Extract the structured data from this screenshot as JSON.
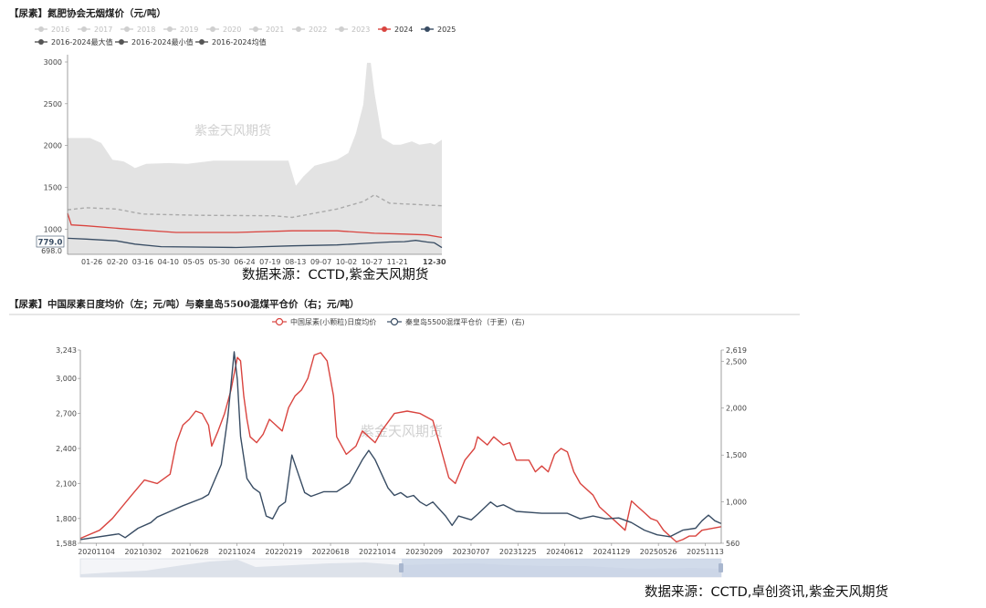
{
  "chart_data": [
    {
      "type": "area",
      "title": "【尿素】氮肥协会无烟煤价（元/吨）",
      "legend": {
        "placement": "top",
        "years": [
          "2016",
          "2017",
          "2018",
          "2019",
          "2020",
          "2021",
          "2022",
          "2023",
          "2024",
          "2025"
        ],
        "active_years": [
          "2024",
          "2025"
        ],
        "bands": [
          "2016-2024最大值",
          "2016-2024最小值",
          "2016-2024均值"
        ]
      },
      "x_ticks": [
        "01-26",
        "02-20",
        "03-16",
        "04-10",
        "05-05",
        "05-30",
        "06-24",
        "07-19",
        "08-13",
        "09-07",
        "10-02",
        "10-27",
        "11-21",
        "12-30"
      ],
      "y_ticks": [
        3000,
        2500,
        2000,
        1500,
        1000
      ],
      "ylim": [
        698,
        3000
      ],
      "y_min_label": "698.0",
      "last_value_label": "779.0",
      "watermark": "紫金天风期货",
      "grid": false,
      "series": [
        {
          "name": "2016-2024最大值",
          "color": "#e3e3e3",
          "points": [
            [
              0,
              2090
            ],
            [
              6,
              2090
            ],
            [
              9,
              2030
            ],
            [
              12,
              1830
            ],
            [
              15,
              1810
            ],
            [
              17,
              1760
            ],
            [
              18,
              1730
            ],
            [
              21,
              1780
            ],
            [
              27,
              1790
            ],
            [
              32,
              1780
            ],
            [
              39,
              1820
            ],
            [
              46,
              1820
            ],
            [
              59,
              1820
            ],
            [
              61,
              1520
            ],
            [
              63,
              1630
            ],
            [
              66,
              1760
            ],
            [
              72,
              1830
            ],
            [
              75,
              1910
            ],
            [
              77,
              2140
            ],
            [
              79,
              2490
            ],
            [
              80,
              2990
            ],
            [
              81,
              2990
            ],
            [
              82,
              2630
            ],
            [
              84,
              2090
            ],
            [
              87,
              2010
            ],
            [
              89,
              2010
            ],
            [
              92,
              2050
            ],
            [
              94,
              2010
            ],
            [
              97,
              2030
            ],
            [
              98,
              2010
            ],
            [
              100,
              2070
            ]
          ]
        },
        {
          "name": "2016-2024最小值",
          "color": "#e3e3e3",
          "points": [
            [
              0,
              698
            ],
            [
              100,
              698
            ]
          ]
        },
        {
          "name": "2016-2024均值",
          "color": "#aaaaaa",
          "points": [
            [
              0,
              1230
            ],
            [
              5,
              1255
            ],
            [
              13,
              1240
            ],
            [
              20,
              1180
            ],
            [
              35,
              1165
            ],
            [
              55,
              1160
            ],
            [
              60,
              1140
            ],
            [
              72,
              1240
            ],
            [
              79,
              1330
            ],
            [
              82,
              1410
            ],
            [
              86,
              1310
            ],
            [
              100,
              1280
            ]
          ]
        },
        {
          "name": "2024",
          "color": "#d9443f",
          "points": [
            [
              0,
              1190
            ],
            [
              1,
              1050
            ],
            [
              5,
              1040
            ],
            [
              16,
              1000
            ],
            [
              29,
              960
            ],
            [
              45,
              960
            ],
            [
              60,
              980
            ],
            [
              72,
              980
            ],
            [
              82,
              950
            ],
            [
              90,
              940
            ],
            [
              96,
              930
            ],
            [
              100,
              900
            ]
          ]
        },
        {
          "name": "2025",
          "color": "#384c63",
          "points": [
            [
              0,
              890
            ],
            [
              5,
              880
            ],
            [
              13,
              860
            ],
            [
              18,
              820
            ],
            [
              25,
              790
            ],
            [
              45,
              780
            ],
            [
              60,
              800
            ],
            [
              72,
              810
            ],
            [
              80,
              830
            ],
            [
              86,
              845
            ],
            [
              90,
              850
            ],
            [
              93,
              865
            ],
            [
              96,
              845
            ],
            [
              98,
              835
            ],
            [
              100,
              779
            ]
          ]
        }
      ]
    },
    {
      "type": "line",
      "title": "【尿素】中国尿素日度均价（左；元/吨）与秦皇岛5500混煤平仓价（右；元/吨）",
      "legend": {
        "placement": "top",
        "entries": [
          "中国尿素(小颗粒)日度均价",
          "秦皇岛5500混煤平仓价（于更）(右)"
        ]
      },
      "x_ticks": [
        "20201104",
        "20210302",
        "20210628",
        "20211024",
        "20220219",
        "20220618",
        "20221014",
        "20230209",
        "20230707",
        "20231225",
        "20240612",
        "20241129",
        "20250526",
        "20251113"
      ],
      "y_left_ticks": [
        3243,
        3000,
        2700,
        2400,
        2100,
        1800,
        1588
      ],
      "y_right_ticks": [
        2619,
        2500,
        2000,
        1500,
        1000,
        560
      ],
      "ylim_left": [
        1588,
        3243
      ],
      "ylim_right": [
        560,
        2619
      ],
      "watermark": "紫金天风期货",
      "grid": false,
      "series": [
        {
          "name": "中国尿素(小颗粒)日度均价",
          "axis": "left",
          "color": "#d9443f",
          "points": [
            [
              0,
              1630
            ],
            [
              3,
              1700
            ],
            [
              5,
              1800
            ],
            [
              8,
              2000
            ],
            [
              10,
              2130
            ],
            [
              12,
              2100
            ],
            [
              14,
              2180
            ],
            [
              15,
              2450
            ],
            [
              16,
              2600
            ],
            [
              17,
              2650
            ],
            [
              18,
              2720
            ],
            [
              19,
              2700
            ],
            [
              20,
              2600
            ],
            [
              20.5,
              2420
            ],
            [
              21.5,
              2550
            ],
            [
              22.5,
              2700
            ],
            [
              23.5,
              2900
            ],
            [
              24.5,
              3180
            ],
            [
              25,
              3150
            ],
            [
              25.5,
              2850
            ],
            [
              26,
              2650
            ],
            [
              26.5,
              2500
            ],
            [
              27.5,
              2450
            ],
            [
              28.5,
              2520
            ],
            [
              29.5,
              2650
            ],
            [
              30.5,
              2600
            ],
            [
              31.5,
              2550
            ],
            [
              32.5,
              2750
            ],
            [
              33.5,
              2850
            ],
            [
              34.5,
              2900
            ],
            [
              35.5,
              3000
            ],
            [
              36.5,
              3200
            ],
            [
              37.5,
              3220
            ],
            [
              38.5,
              3150
            ],
            [
              39.5,
              2850
            ],
            [
              40,
              2500
            ],
            [
              41.5,
              2350
            ],
            [
              43,
              2420
            ],
            [
              44,
              2550
            ],
            [
              46,
              2450
            ],
            [
              47,
              2550
            ],
            [
              49,
              2700
            ],
            [
              51,
              2720
            ],
            [
              53,
              2700
            ],
            [
              55,
              2640
            ],
            [
              56,
              2450
            ],
            [
              57.5,
              2150
            ],
            [
              58.5,
              2100
            ],
            [
              60,
              2300
            ],
            [
              61.5,
              2400
            ],
            [
              62,
              2500
            ],
            [
              63.5,
              2430
            ],
            [
              64.5,
              2500
            ],
            [
              66,
              2430
            ],
            [
              67,
              2450
            ],
            [
              68,
              2300
            ],
            [
              70,
              2300
            ],
            [
              71,
              2200
            ],
            [
              72,
              2250
            ],
            [
              73,
              2200
            ],
            [
              74,
              2350
            ],
            [
              75,
              2400
            ],
            [
              76,
              2370
            ],
            [
              77,
              2200
            ],
            [
              78,
              2100
            ],
            [
              80,
              2000
            ],
            [
              81,
              1900
            ],
            [
              82,
              1850
            ],
            [
              83,
              1800
            ],
            [
              84,
              1750
            ],
            [
              85,
              1700
            ],
            [
              86,
              1950
            ],
            [
              87,
              1900
            ],
            [
              88,
              1850
            ],
            [
              89,
              1800
            ],
            [
              90,
              1780
            ],
            [
              91,
              1700
            ],
            [
              92,
              1650
            ],
            [
              93,
              1600
            ],
            [
              94,
              1620
            ],
            [
              95,
              1650
            ],
            [
              96,
              1650
            ],
            [
              97,
              1700
            ],
            [
              100,
              1730
            ]
          ]
        },
        {
          "name": "秦皇岛5500混煤平仓价（于更）(右)",
          "axis": "right",
          "color": "#384c63",
          "points": [
            [
              0,
              600
            ],
            [
              6,
              660
            ],
            [
              7,
              620
            ],
            [
              9,
              720
            ],
            [
              11,
              780
            ],
            [
              12,
              840
            ],
            [
              14,
              900
            ],
            [
              16,
              960
            ],
            [
              19,
              1040
            ],
            [
              20,
              1080
            ],
            [
              22,
              1400
            ],
            [
              23,
              1900
            ],
            [
              24,
              2600
            ],
            [
              24.5,
              2300
            ],
            [
              25,
              1700
            ],
            [
              26,
              1250
            ],
            [
              27,
              1150
            ],
            [
              28,
              1100
            ],
            [
              29,
              850
            ],
            [
              30,
              820
            ],
            [
              31,
              950
            ],
            [
              32,
              1000
            ],
            [
              33,
              1500
            ],
            [
              34,
              1300
            ],
            [
              35,
              1100
            ],
            [
              36,
              1060
            ],
            [
              38,
              1110
            ],
            [
              40,
              1110
            ],
            [
              42,
              1200
            ],
            [
              44,
              1450
            ],
            [
              45,
              1550
            ],
            [
              46,
              1450
            ],
            [
              47,
              1300
            ],
            [
              48,
              1150
            ],
            [
              49,
              1070
            ],
            [
              50,
              1100
            ],
            [
              51,
              1050
            ],
            [
              52,
              1070
            ],
            [
              53,
              1000
            ],
            [
              54,
              960
            ],
            [
              55,
              1000
            ],
            [
              57,
              850
            ],
            [
              58,
              750
            ],
            [
              59,
              850
            ],
            [
              60,
              830
            ],
            [
              61,
              810
            ],
            [
              62,
              870
            ],
            [
              64,
              1000
            ],
            [
              65,
              950
            ],
            [
              66,
              970
            ],
            [
              68,
              900
            ],
            [
              72,
              880
            ],
            [
              76,
              880
            ],
            [
              78,
              820
            ],
            [
              80,
              850
            ],
            [
              82,
              820
            ],
            [
              84,
              830
            ],
            [
              86,
              780
            ],
            [
              88,
              700
            ],
            [
              90,
              650
            ],
            [
              92,
              630
            ],
            [
              94,
              700
            ],
            [
              96,
              720
            ],
            [
              97,
              800
            ],
            [
              98,
              860
            ],
            [
              99,
              800
            ],
            [
              100,
              770
            ]
          ]
        }
      ]
    }
  ],
  "source1": "数据来源：CCTD,紫金天风期货",
  "source2": "数据来源：CCTD,卓创资讯,紫金天风期货",
  "watermark": "紫金天风期货"
}
